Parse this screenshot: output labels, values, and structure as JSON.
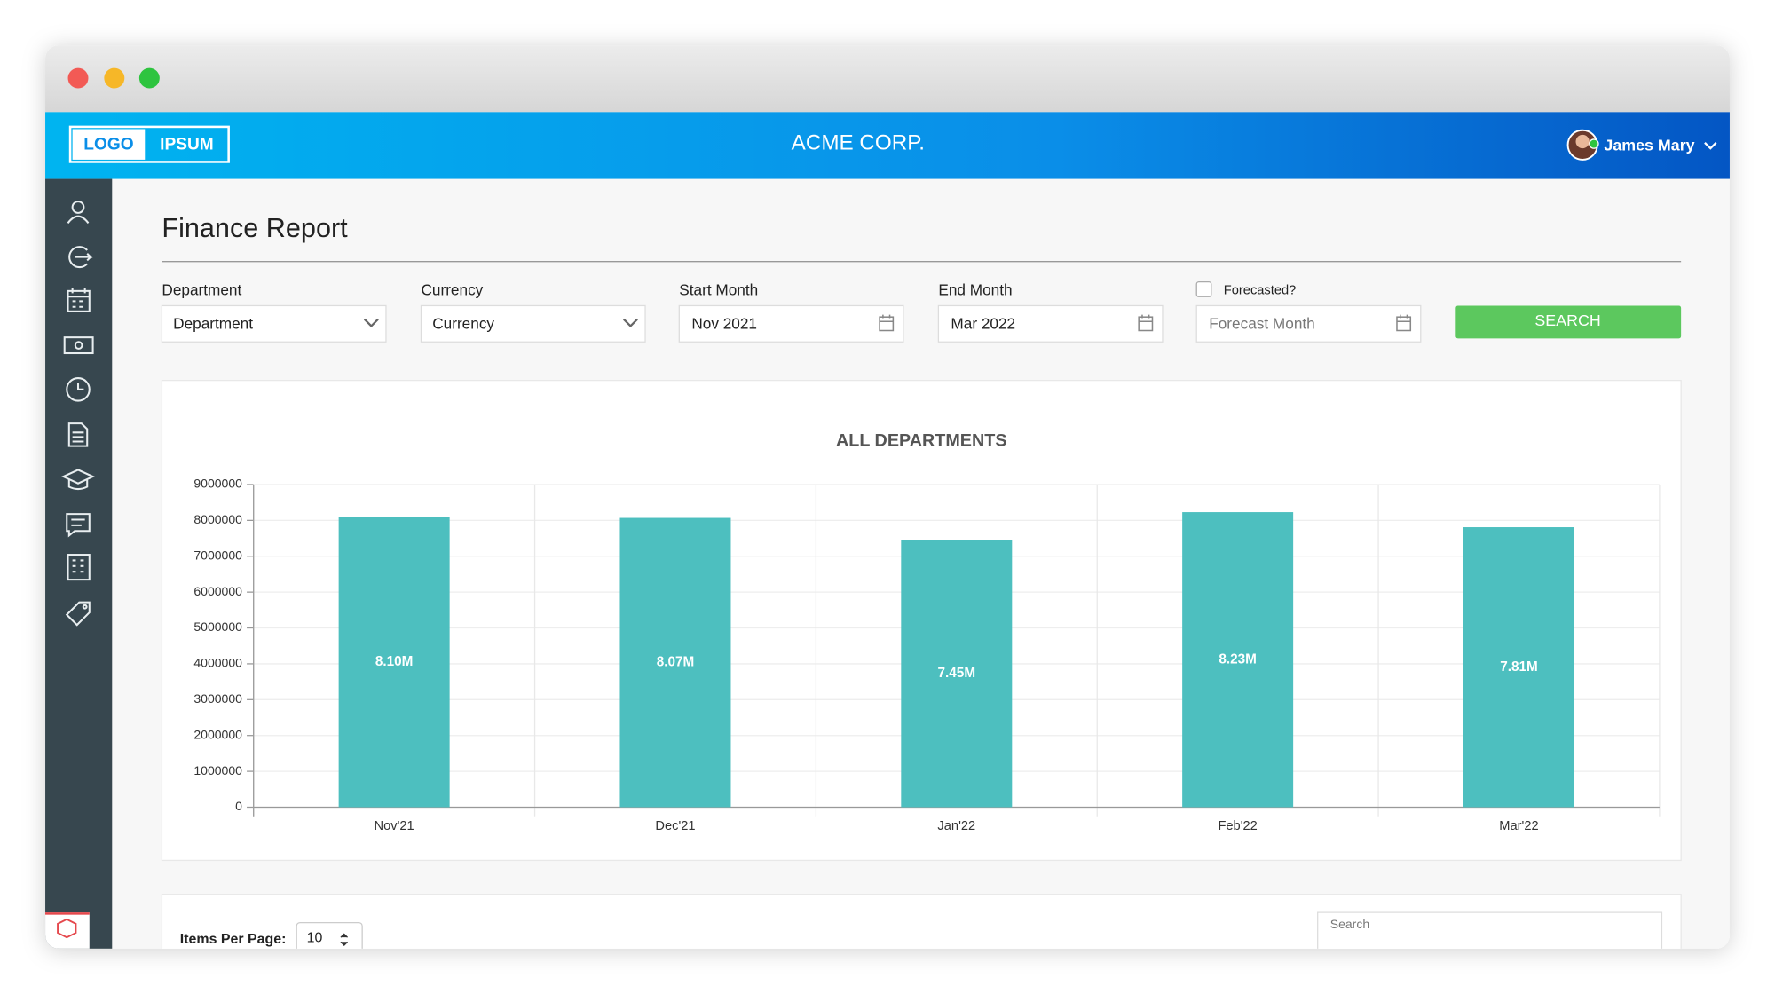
{
  "header": {
    "logo": [
      "LOGO",
      "IPSUM"
    ],
    "company": "ACME CORP.",
    "user": "James Mary"
  },
  "page": {
    "title": "Finance Report"
  },
  "filters": [
    {
      "label": "Department",
      "value": "Department"
    },
    {
      "label": "Currency",
      "value": "Currency"
    },
    {
      "label": "Start Month",
      "value": "Nov 2021"
    },
    {
      "label": "End Month",
      "value": "Mar 2022"
    }
  ],
  "forecast": {
    "label": "Forecasted?",
    "placeholder": "Forecast Month"
  },
  "button": "SEARCH",
  "chart_data": {
    "type": "bar",
    "title": "ALL DEPARTMENTS",
    "categories": [
      "Nov'21",
      "Dec'21",
      "Jan'22",
      "Feb'22",
      "Mar'22"
    ],
    "values": [
      8100000,
      8070000,
      7450000,
      8230000,
      7810000
    ],
    "value_labels": [
      "8.10M",
      "8.07M",
      "7.45M",
      "8.23M",
      "7.81M"
    ],
    "color": "#4dbfbf",
    "ylim": [
      0,
      9000000
    ],
    "yticks": [
      0,
      1000000,
      2000000,
      3000000,
      4000000,
      5000000,
      6000000,
      7000000,
      8000000,
      9000000
    ],
    "grid": true
  },
  "table_controls": {
    "items_label": "Items Per Page:",
    "items_value": 10,
    "search_placeholder": "Search"
  }
}
